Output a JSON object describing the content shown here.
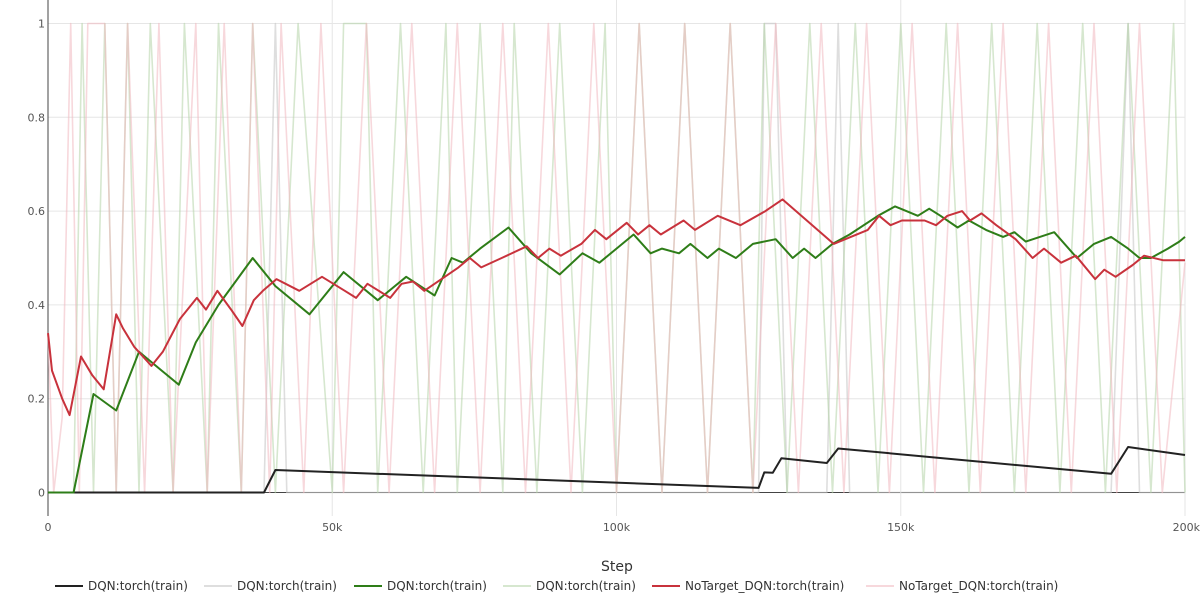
{
  "chart_data": {
    "type": "line",
    "xlabel": "Step",
    "ylabel": "",
    "xlim": [
      0,
      200000
    ],
    "ylim": [
      -0.05,
      1.05
    ],
    "x_ticks": [
      0,
      50000,
      100000,
      150000,
      200000
    ],
    "x_tick_labels": [
      "0",
      "50k",
      "100k",
      "150k",
      "200k"
    ],
    "y_ticks": [
      0,
      0.2,
      0.4,
      0.6,
      0.8,
      1
    ],
    "y_tick_labels": [
      "0",
      "0.2",
      "0.4",
      "0.6",
      "0.8",
      "1"
    ],
    "grid": true,
    "legend_position": "bottom",
    "series": [
      {
        "name": "DQN:torch(train)",
        "color": "#222222",
        "opacity": 1,
        "kind": "smoothed",
        "x": [
          0,
          38000,
          40000,
          125000,
          126000,
          127500,
          129000,
          137000,
          139000,
          187000,
          190000,
          200000
        ],
        "y": [
          0,
          0,
          0.048,
          0.01,
          0.043,
          0.042,
          0.073,
          0.063,
          0.094,
          0.04,
          0.097,
          0.08
        ]
      },
      {
        "name": "DQN:torch(train)",
        "color": "#c8c8c8",
        "opacity": 0.6,
        "kind": "raw",
        "x": [
          0,
          38000,
          40000,
          42000,
          125000,
          126000,
          128000,
          130000,
          137000,
          139000,
          141000,
          187000,
          190000,
          192000,
          200000
        ],
        "y": [
          0,
          0,
          1,
          0,
          0,
          1,
          1,
          0,
          0,
          1,
          0,
          0,
          1,
          0,
          0
        ]
      },
      {
        "name": "DQN:torch(train)",
        "color": "#2e7d18",
        "opacity": 1,
        "kind": "smoothed",
        "x": [
          0,
          4500,
          8000,
          12000,
          16000,
          20000,
          23000,
          26000,
          30000,
          33000,
          36000,
          40000,
          46000,
          52000,
          58000,
          63000,
          68000,
          71000,
          73000,
          76000,
          81000,
          85000,
          90000,
          94000,
          97000,
          100000,
          103000,
          106000,
          108000,
          111000,
          113000,
          116000,
          118000,
          121000,
          124000,
          128000,
          131000,
          133000,
          135000,
          138000,
          141000,
          146000,
          149000,
          151000,
          153000,
          155000,
          157000,
          160000,
          162000,
          165000,
          168000,
          170000,
          172000,
          177000,
          181000,
          184000,
          187000,
          190000,
          192000,
          194000,
          197000,
          199000,
          200000
        ],
        "y": [
          0,
          0,
          0.21,
          0.175,
          0.3,
          0.26,
          0.23,
          0.32,
          0.4,
          0.45,
          0.5,
          0.44,
          0.38,
          0.47,
          0.41,
          0.46,
          0.42,
          0.5,
          0.49,
          0.52,
          0.565,
          0.51,
          0.465,
          0.51,
          0.49,
          0.52,
          0.55,
          0.51,
          0.52,
          0.51,
          0.53,
          0.5,
          0.52,
          0.5,
          0.53,
          0.54,
          0.5,
          0.52,
          0.5,
          0.53,
          0.55,
          0.59,
          0.61,
          0.6,
          0.59,
          0.605,
          0.59,
          0.565,
          0.58,
          0.56,
          0.545,
          0.555,
          0.535,
          0.555,
          0.5,
          0.53,
          0.545,
          0.52,
          0.5,
          0.5,
          0.52,
          0.535,
          0.545
        ]
      },
      {
        "name": "DQN:torch(train)",
        "color": "#b5d3a8",
        "opacity": 0.55,
        "kind": "raw",
        "x": [
          0,
          4500,
          6000,
          8000,
          10000,
          12000,
          14000,
          16000,
          18000,
          22000,
          24000,
          28000,
          30000,
          34000,
          36000,
          40000,
          44000,
          50000,
          52000,
          56000,
          58000,
          62000,
          66000,
          70000,
          72000,
          76000,
          80000,
          82000,
          86000,
          90000,
          94000,
          98000,
          100000,
          104000,
          108000,
          112000,
          116000,
          120000,
          124000,
          126000,
          130000,
          134000,
          138000,
          142000,
          146000,
          150000,
          154000,
          158000,
          162000,
          166000,
          170000,
          174000,
          178000,
          182000,
          186000,
          190000,
          194000,
          198000,
          200000
        ],
        "y": [
          0,
          0,
          1,
          0,
          1,
          0,
          1,
          0,
          1,
          0,
          1,
          0,
          1,
          0,
          1,
          0,
          1,
          0,
          1,
          1,
          0,
          1,
          0,
          1,
          0,
          1,
          0,
          1,
          0,
          1,
          0,
          1,
          0,
          1,
          0,
          1,
          0,
          1,
          0,
          1,
          0,
          1,
          0,
          1,
          0,
          1,
          0,
          1,
          0,
          1,
          0,
          1,
          0,
          1,
          0,
          1,
          0,
          1,
          0
        ]
      },
      {
        "name": "NoTarget_DQN:torch(train)",
        "color": "#c8323c",
        "opacity": 1,
        "kind": "smoothed",
        "x": [
          0,
          700,
          2500,
          3800,
          5800,
          7800,
          9800,
          12000,
          13200,
          15200,
          18200,
          20200,
          23200,
          26200,
          27800,
          29800,
          32200,
          34200,
          36200,
          37800,
          40200,
          44200,
          48200,
          52200,
          54200,
          56200,
          60200,
          62200,
          64200,
          66200,
          69800,
          72200,
          74200,
          76200,
          79800,
          84200,
          86200,
          88200,
          90200,
          93800,
          96200,
          98200,
          101800,
          103800,
          105800,
          107800,
          111800,
          113800,
          117800,
          121800,
          126200,
          129200,
          138200,
          144200,
          146200,
          148200,
          150200,
          154200,
          156200,
          158200,
          160800,
          162200,
          164200,
          166800,
          170200,
          173200,
          175200,
          178200,
          180800,
          184200,
          185800,
          187800,
          190800,
          192800,
          196200,
          200000
        ],
        "y": [
          0.34,
          0.26,
          0.2,
          0.165,
          0.29,
          0.25,
          0.22,
          0.38,
          0.35,
          0.31,
          0.27,
          0.3,
          0.37,
          0.415,
          0.39,
          0.43,
          0.39,
          0.355,
          0.41,
          0.43,
          0.455,
          0.43,
          0.46,
          0.43,
          0.415,
          0.445,
          0.415,
          0.445,
          0.45,
          0.43,
          0.46,
          0.48,
          0.5,
          0.48,
          0.5,
          0.525,
          0.5,
          0.52,
          0.505,
          0.53,
          0.56,
          0.54,
          0.575,
          0.55,
          0.57,
          0.55,
          0.58,
          0.56,
          0.59,
          0.57,
          0.6,
          0.625,
          0.53,
          0.56,
          0.59,
          0.57,
          0.58,
          0.58,
          0.57,
          0.59,
          0.6,
          0.58,
          0.595,
          0.57,
          0.54,
          0.5,
          0.52,
          0.49,
          0.505,
          0.455,
          0.475,
          0.46,
          0.485,
          0.505,
          0.495,
          0.495
        ]
      },
      {
        "name": "NoTarget_DQN:torch(train)",
        "color": "#f0b8c0",
        "opacity": 0.55,
        "kind": "raw",
        "x": [
          0,
          1000,
          2500,
          4000,
          5500,
          7000,
          10000,
          12000,
          14000,
          17000,
          19500,
          22000,
          26000,
          28000,
          31000,
          34000,
          36000,
          39000,
          41000,
          45000,
          48000,
          52000,
          56000,
          60000,
          64000,
          68000,
          72000,
          76000,
          80000,
          84000,
          88000,
          92000,
          96000,
          100000,
          104000,
          108000,
          112000,
          116000,
          120000,
          124000,
          128000,
          132000,
          136000,
          140000,
          144000,
          148000,
          152000,
          156000,
          160000,
          164000,
          168000,
          172000,
          176000,
          180000,
          184000,
          188000,
          192000,
          196000,
          200000
        ],
        "y": [
          0.34,
          0,
          0.16,
          1,
          0,
          1,
          1,
          0,
          1,
          0,
          1,
          0,
          1,
          0,
          1,
          0,
          1,
          0,
          1,
          0,
          1,
          0,
          1,
          0,
          1,
          0,
          1,
          0,
          1,
          0,
          1,
          0,
          1,
          0,
          1,
          0,
          1,
          0,
          1,
          0,
          1,
          0,
          1,
          0,
          1,
          0,
          1,
          0,
          1,
          0,
          1,
          0,
          1,
          0,
          1,
          0,
          1,
          0,
          0.49
        ]
      }
    ]
  }
}
